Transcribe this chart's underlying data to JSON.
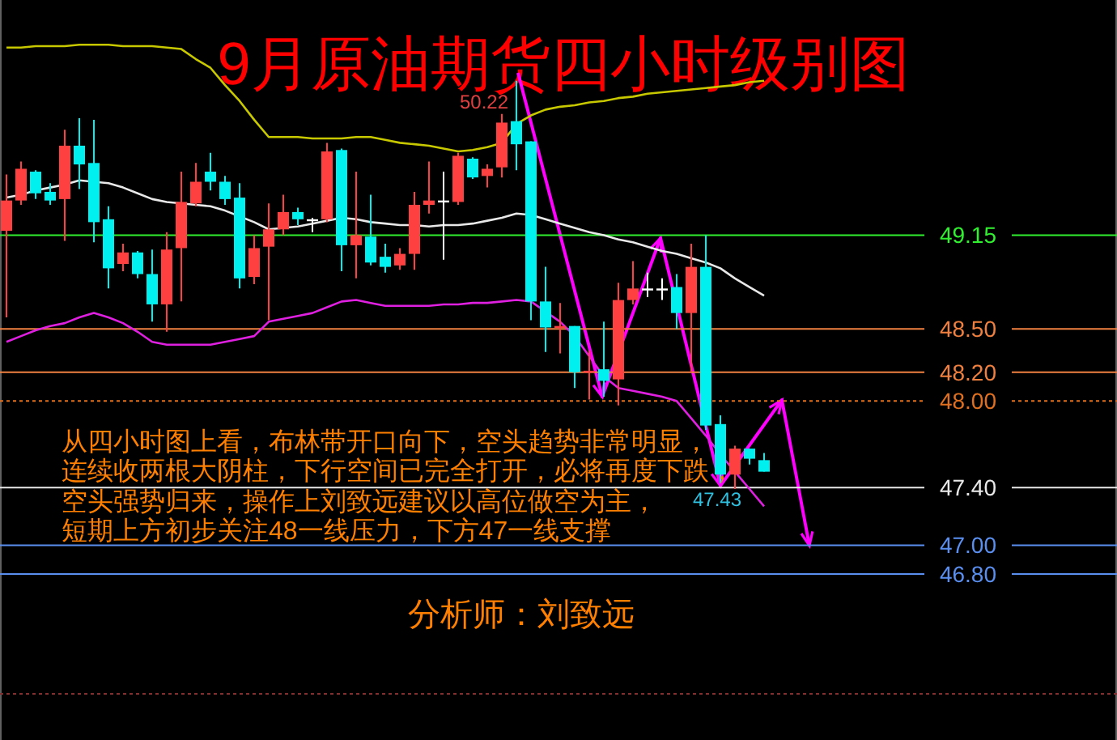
{
  "chart_data": {
    "type": "candlestick",
    "title": "9月原油期货四小时级别图",
    "categories": [
      null,
      null,
      null,
      null,
      null,
      null,
      null,
      null,
      null,
      null,
      null,
      null,
      null,
      null,
      null,
      null,
      null,
      null,
      null,
      null,
      null,
      null,
      null,
      null,
      null,
      null,
      null,
      null,
      null,
      null,
      null,
      null,
      null,
      null,
      null,
      null,
      null,
      null,
      null,
      null,
      null,
      null,
      null,
      null,
      null,
      null,
      null,
      null,
      null,
      null,
      null,
      null,
      null
    ],
    "ohlc": [
      [
        49.18,
        49.57,
        48.58,
        49.39
      ],
      [
        49.39,
        49.66,
        49.36,
        49.61
      ],
      [
        49.59,
        49.6,
        49.4,
        49.44
      ],
      [
        49.45,
        49.51,
        49.36,
        49.39
      ],
      [
        49.4,
        49.88,
        49.11,
        49.77
      ],
      [
        49.77,
        49.96,
        49.47,
        49.64
      ],
      [
        49.65,
        49.95,
        49.1,
        49.24
      ],
      [
        49.26,
        49.35,
        48.78,
        48.92
      ],
      [
        48.95,
        49.09,
        48.9,
        49.03
      ],
      [
        49.03,
        49.04,
        48.85,
        48.88
      ],
      [
        48.88,
        49.05,
        48.55,
        48.67
      ],
      [
        48.67,
        49.17,
        48.48,
        49.05
      ],
      [
        49.06,
        49.59,
        48.69,
        49.38
      ],
      [
        49.37,
        49.65,
        49.35,
        49.52
      ],
      [
        49.59,
        49.72,
        49.46,
        49.52
      ],
      [
        49.52,
        49.56,
        49.36,
        49.4
      ],
      [
        49.41,
        49.51,
        48.78,
        48.85
      ],
      [
        48.86,
        49.15,
        48.81,
        49.06
      ],
      [
        49.07,
        49.37,
        48.56,
        49.19
      ],
      [
        49.19,
        49.43,
        49.15,
        49.31
      ],
      [
        49.31,
        49.34,
        49.22,
        49.26
      ],
      [
        49.26,
        49.27,
        49.17,
        49.26
      ],
      [
        49.26,
        49.79,
        49.24,
        49.73
      ],
      [
        49.74,
        49.75,
        48.9,
        49.08
      ],
      [
        49.08,
        49.59,
        48.85,
        49.15
      ],
      [
        49.14,
        49.43,
        48.94,
        48.96
      ],
      [
        49.0,
        49.09,
        48.89,
        48.93
      ],
      [
        48.94,
        49.06,
        48.91,
        49.02
      ],
      [
        49.02,
        49.45,
        48.91,
        49.36
      ],
      [
        49.36,
        49.66,
        49.3,
        49.39
      ],
      [
        49.39,
        49.59,
        48.98,
        49.39
      ],
      [
        49.38,
        49.72,
        49.36,
        49.7
      ],
      [
        49.68,
        49.69,
        49.54,
        49.55
      ],
      [
        49.56,
        49.64,
        49.48,
        49.61
      ],
      [
        49.62,
        49.99,
        49.55,
        49.93
      ],
      [
        49.94,
        50.22,
        49.6,
        49.78
      ],
      [
        49.8,
        49.8,
        48.56,
        48.69
      ],
      [
        48.69,
        48.93,
        48.34,
        48.51
      ],
      [
        48.51,
        48.68,
        48.33,
        48.52
      ],
      [
        48.52,
        48.52,
        48.09,
        48.2
      ],
      [
        48.21,
        48.35,
        48.01,
        48.21
      ],
      [
        48.22,
        48.55,
        48.03,
        48.14
      ],
      [
        48.15,
        48.82,
        47.97,
        48.7
      ],
      [
        48.7,
        48.97,
        48.67,
        48.78
      ],
      [
        48.78,
        48.89,
        48.72,
        48.78
      ],
      [
        48.78,
        48.85,
        48.7,
        48.78
      ],
      [
        48.79,
        48.88,
        48.5,
        48.61
      ],
      [
        48.61,
        49.09,
        48.2,
        48.93
      ],
      [
        48.93,
        49.15,
        47.8,
        47.83
      ],
      [
        47.84,
        47.9,
        47.43,
        47.49
      ],
      [
        47.49,
        47.69,
        47.39,
        47.67
      ],
      [
        47.67,
        47.67,
        47.56,
        47.6
      ],
      [
        47.59,
        47.64,
        47.51,
        47.51
      ]
    ],
    "colors": [
      "#ff4040",
      "#ff4040",
      "#00f0f0",
      "#00f0f0",
      "#ff4040",
      "#00f0f0",
      "#00f0f0",
      "#00f0f0",
      "#ff4040",
      "#00f0f0",
      "#00f0f0",
      "#ff4040",
      "#ff4040",
      "#ff4040",
      "#00f0f0",
      "#00f0f0",
      "#00f0f0",
      "#ff4040",
      "#ff4040",
      "#ff4040",
      "#00f0f0",
      "#ffffff",
      "#ff4040",
      "#00f0f0",
      "#ff4040",
      "#00f0f0",
      "#00f0f0",
      "#ff4040",
      "#ff4040",
      "#ff4040",
      "#ffffff",
      "#ff4040",
      "#00f0f0",
      "#ff4040",
      "#ff4040",
      "#00f0f0",
      "#00f0f0",
      "#00f0f0",
      "#ff4040",
      "#00f0f0",
      "#ff4040",
      "#00f0f0",
      "#ff4040",
      "#ff4040",
      "#ffffff",
      "#ffffff",
      "#00f0f0",
      "#ff4040",
      "#00f0f0",
      "#00f0f0",
      "#ff4040",
      "#00f0f0",
      "#00f0f0"
    ],
    "series": [
      {
        "type": "line",
        "color": "#c8c800",
        "values": [
          50.45,
          50.45,
          50.46,
          50.46,
          50.46,
          50.47,
          50.47,
          50.47,
          50.46,
          50.46,
          50.46,
          50.45,
          50.44,
          50.37,
          50.31,
          50.19,
          50.08,
          49.95,
          49.83,
          49.83,
          49.83,
          49.82,
          49.82,
          49.82,
          49.83,
          49.83,
          49.81,
          49.79,
          49.78,
          49.77,
          49.75,
          49.73,
          49.74,
          49.76,
          49.79,
          49.92,
          49.98,
          50.02,
          50.04,
          50.05,
          50.07,
          50.08,
          50.1,
          50.11,
          50.13,
          50.14,
          50.15,
          50.16,
          50.17,
          50.18,
          50.19,
          50.21,
          50.22
        ]
      },
      {
        "type": "line",
        "color": "#e8e8e8",
        "values": [
          49.41,
          49.43,
          49.46,
          49.48,
          49.5,
          49.53,
          49.52,
          49.51,
          49.48,
          49.44,
          49.4,
          49.38,
          49.37,
          49.36,
          49.35,
          49.32,
          49.28,
          49.24,
          49.19,
          49.2,
          49.21,
          49.23,
          49.25,
          49.27,
          49.26,
          49.24,
          49.23,
          49.22,
          49.22,
          49.21,
          49.22,
          49.22,
          49.23,
          49.25,
          49.27,
          49.3,
          49.29,
          49.26,
          49.23,
          49.2,
          49.17,
          49.15,
          49.12,
          49.1,
          49.07,
          49.04,
          49.02,
          48.99,
          48.96,
          48.92,
          48.85,
          48.79,
          48.73
        ]
      },
      {
        "type": "line",
        "color": "#e020e0",
        "values": [
          48.41,
          48.45,
          48.49,
          48.52,
          48.54,
          48.58,
          48.61,
          48.58,
          48.54,
          48.48,
          48.41,
          48.39,
          48.39,
          48.39,
          48.39,
          48.41,
          48.43,
          48.45,
          48.55,
          48.57,
          48.59,
          48.61,
          48.65,
          48.69,
          48.7,
          48.68,
          48.66,
          48.66,
          48.66,
          48.66,
          48.67,
          48.67,
          48.68,
          48.68,
          48.69,
          48.7,
          48.69,
          48.62,
          48.55,
          48.45,
          48.31,
          48.17,
          48.09,
          48.07,
          48.05,
          48.03,
          48.0,
          47.88,
          47.76,
          47.63,
          47.51,
          47.39,
          47.27
        ]
      }
    ],
    "ref_lines": [
      {
        "axis": "y",
        "value": 49.15,
        "color": "#30f030",
        "line_style": "solid"
      },
      {
        "axis": "y",
        "value": 48.5,
        "color": "#f08040",
        "line_style": "solid"
      },
      {
        "axis": "y",
        "value": 48.2,
        "color": "#f08040",
        "line_style": "solid"
      },
      {
        "axis": "y",
        "value": 48.0,
        "color": "#e07020",
        "line_style": "dotted"
      },
      {
        "axis": "y",
        "value": 47.4,
        "color": "#e8e8e8",
        "line_style": "solid"
      },
      {
        "axis": "y",
        "value": 47.0,
        "color": "#5a8ff0",
        "line_style": "solid"
      },
      {
        "axis": "y",
        "value": 46.8,
        "color": "#5a8ff0",
        "line_style": "solid"
      },
      {
        "axis": "y",
        "value": 45.97,
        "color": "#803030",
        "line_style": "dotted"
      }
    ],
    "annotations": [
      "从四小时图上看，布林带开口向下，空头趋势非常明显，",
      "连续收两根大阴柱，下行空间已完全打开，必将再度下跌，",
      "空头强势归来，操作上刘致远建议以高位做空为主，",
      "短期上方初步关注48一线压力，下方47一线支撑",
      "分析师：刘致远",
      "50.22",
      {
        "text": "47.43",
        "y": 47.43
      }
    ],
    "ylim": [
      45.65,
      50.78
    ],
    "yticks": [
      {
        "value": 49.15,
        "label": "49.15"
      },
      {
        "value": 48.5,
        "label": "48.50"
      },
      {
        "value": 48.2,
        "label": "48.20"
      },
      {
        "value": 48.0,
        "label": "48.00"
      },
      {
        "value": 47.4,
        "label": "47.40"
      },
      {
        "value": 47.0,
        "label": "47.00"
      },
      {
        "value": 46.8,
        "label": "46.80"
      }
    ],
    "tick_labels": "y"
  }
}
